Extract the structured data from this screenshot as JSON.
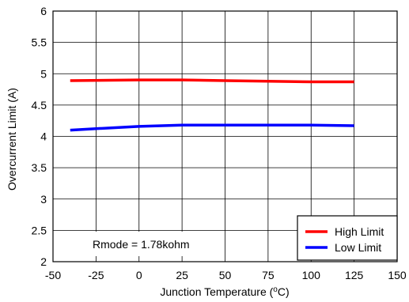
{
  "chart_data": {
    "type": "line",
    "title": "",
    "xlabel": "Junction Temperature (",
    "xlabel_sup": "o",
    "xlabel_suffix": "C)",
    "ylabel": "Overcurrent Limit (A)",
    "xlim": [
      -50,
      150
    ],
    "ylim": [
      2,
      6
    ],
    "xticks": [
      -50,
      -25,
      0,
      25,
      50,
      75,
      100,
      125,
      150
    ],
    "yticks": [
      2,
      2.5,
      3,
      3.5,
      4,
      4.5,
      5,
      5.5,
      6
    ],
    "xtick_labels": [
      "-50",
      "-25",
      "0",
      "25",
      "50",
      "75",
      "100",
      "125",
      "150"
    ],
    "ytick_labels": [
      "2",
      "2.5",
      "3",
      "3.5",
      "4",
      "4.5",
      "5",
      "5.5",
      "6"
    ],
    "grid": true,
    "legend_position": "bottom-right",
    "annotation": "Rmode = 1.78kohm",
    "series": [
      {
        "name": "High Limit",
        "color": "#ff0000",
        "x": [
          -40,
          0,
          25,
          50,
          75,
          100,
          125
        ],
        "y": [
          4.89,
          4.9,
          4.9,
          4.89,
          4.88,
          4.87,
          4.87
        ]
      },
      {
        "name": "Low Limit",
        "color": "#0000ff",
        "x": [
          -40,
          0,
          25,
          50,
          75,
          100,
          125
        ],
        "y": [
          4.1,
          4.16,
          4.18,
          4.18,
          4.18,
          4.18,
          4.17
        ]
      }
    ]
  }
}
